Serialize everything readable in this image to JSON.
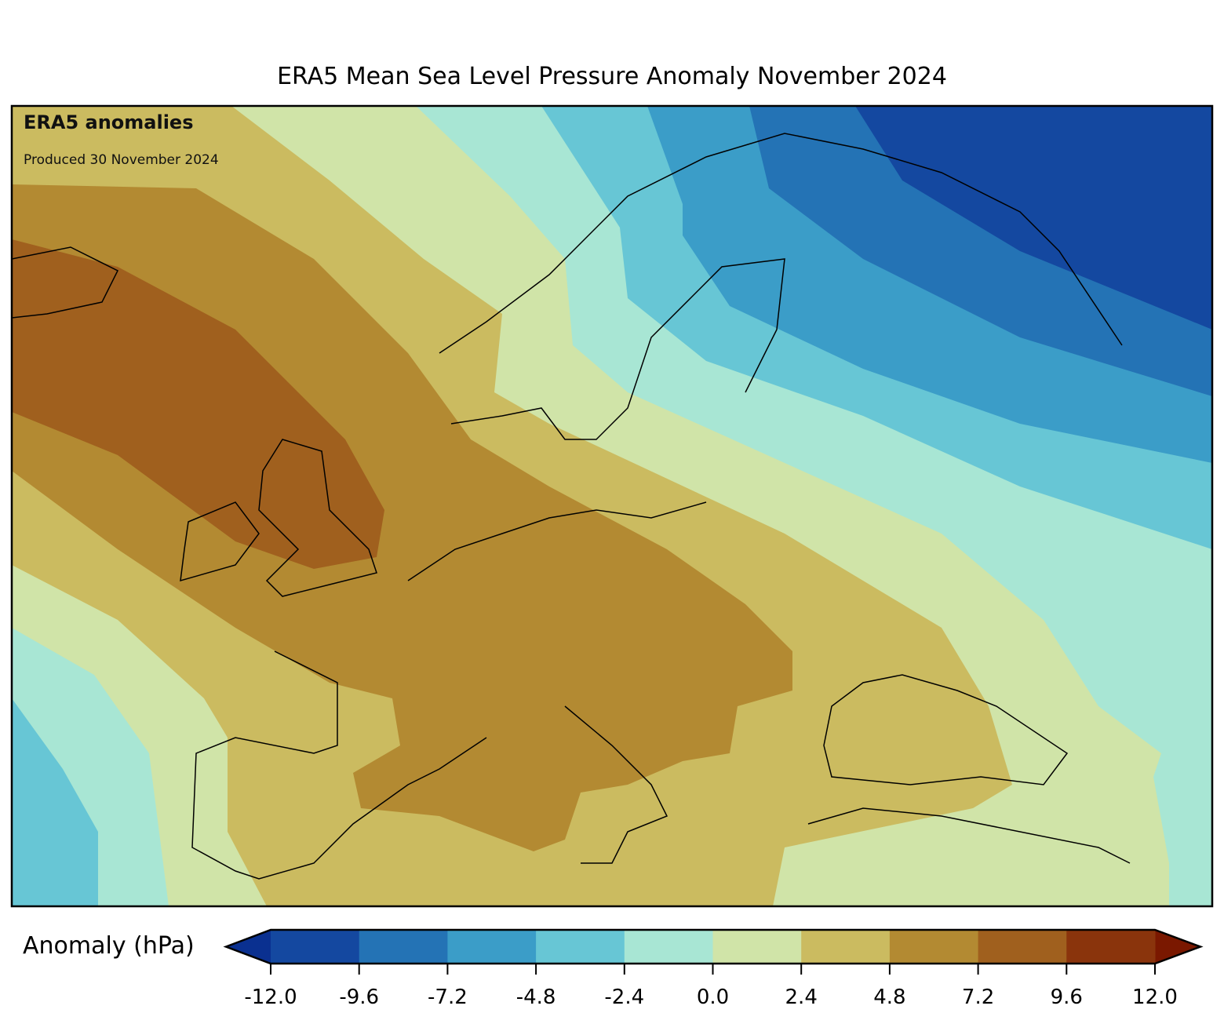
{
  "title": "ERA5 Mean Sea Level Pressure Anomaly November 2024",
  "annotation": {
    "heading": "ERA5 anomalies",
    "produced": "Produced 30 November 2024"
  },
  "colorbar": {
    "label": "Anomaly (hPa)",
    "ticks": [
      "-12.0",
      "-9.6",
      "-7.2",
      "-4.8",
      "-2.4",
      "0.0",
      "2.4",
      "4.8",
      "7.2",
      "9.6",
      "12.0"
    ],
    "levels": [
      -12.0,
      -9.6,
      -7.2,
      -4.8,
      -2.4,
      0.0,
      2.4,
      4.8,
      7.2,
      9.6,
      12.0
    ],
    "colors": [
      "#1448a0",
      "#2473b5",
      "#3b9dc8",
      "#67c6d5",
      "#a8e6d4",
      "#d0e4a8",
      "#cbbb60",
      "#b38a32",
      "#a0601e",
      "#8a340c"
    ],
    "extend_low_color": "#0a3090",
    "extend_high_color": "#7a1800"
  }
}
